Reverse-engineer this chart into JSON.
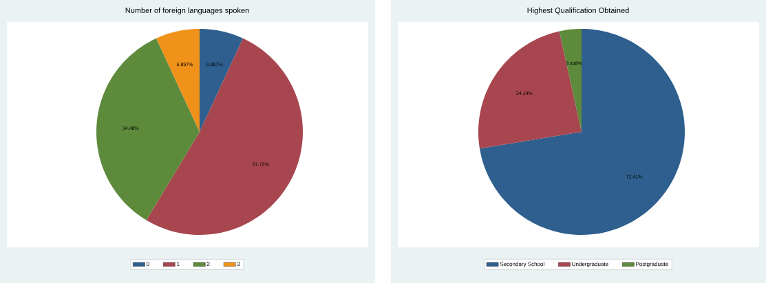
{
  "chart_data": [
    {
      "type": "pie",
      "title": "Number of foreign languages spoken",
      "categories": [
        "0",
        "1",
        "2",
        "3"
      ],
      "values": [
        6.897,
        51.72,
        34.48,
        6.897
      ],
      "value_labels": [
        "6.897%",
        "51.72%",
        "34.48%",
        "6.897%"
      ],
      "colors": [
        "#2e5f8e",
        "#a8464f",
        "#5e8a3c",
        "#f0921a"
      ],
      "legend": "bottom"
    },
    {
      "type": "pie",
      "title": "Highest Qualification Obtained",
      "categories": [
        "Secondary School",
        "Undergraduate",
        "Postgraduate"
      ],
      "values": [
        72.41,
        24.14,
        3.448
      ],
      "value_labels": [
        "72.41%",
        "24.14%",
        "3.448%"
      ],
      "colors": [
        "#2e5f8e",
        "#a8464f",
        "#5e8a3c"
      ],
      "legend": "bottom"
    }
  ]
}
